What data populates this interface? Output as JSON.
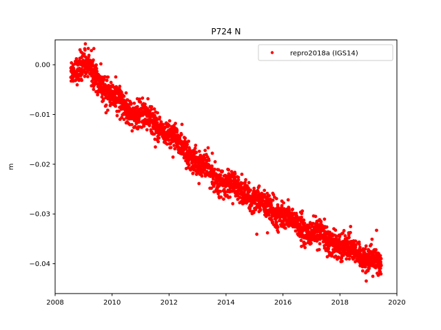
{
  "chart_data": {
    "type": "scatter",
    "title": "P724 N",
    "xlabel": "",
    "ylabel": "m",
    "xlim": [
      2008.0,
      2020.0
    ],
    "ylim": [
      -0.046,
      0.005
    ],
    "xticks": [
      2008,
      2010,
      2012,
      2014,
      2016,
      2018,
      2020
    ],
    "xtick_labels": [
      "2008",
      "2010",
      "2012",
      "2014",
      "2016",
      "2018",
      "2020"
    ],
    "yticks": [
      0.0,
      -0.01,
      -0.02,
      -0.03,
      -0.04
    ],
    "ytick_labels": [
      "0.00",
      "−0.01",
      "−0.02",
      "−0.03",
      "−0.04"
    ],
    "grid": false,
    "legend_position": "top-right",
    "series": [
      {
        "name": "repro2018a (IGS14)",
        "color": "#ff0000",
        "marker": "circle",
        "x_range": [
          2008.55,
          2019.45
        ],
        "trend_points": [
          [
            2008.55,
            -0.001
          ],
          [
            2009.0,
            0.0
          ],
          [
            2009.5,
            -0.003
          ],
          [
            2010.0,
            -0.006
          ],
          [
            2010.5,
            -0.009
          ],
          [
            2011.0,
            -0.01
          ],
          [
            2011.5,
            -0.012
          ],
          [
            2012.0,
            -0.014
          ],
          [
            2012.5,
            -0.017
          ],
          [
            2013.0,
            -0.0195
          ],
          [
            2013.5,
            -0.022
          ],
          [
            2014.0,
            -0.0235
          ],
          [
            2014.5,
            -0.0255
          ],
          [
            2015.0,
            -0.027
          ],
          [
            2015.5,
            -0.0285
          ],
          [
            2016.0,
            -0.0305
          ],
          [
            2016.5,
            -0.032
          ],
          [
            2017.0,
            -0.034
          ],
          [
            2017.5,
            -0.0345
          ],
          [
            2018.0,
            -0.0365
          ],
          [
            2018.5,
            -0.0375
          ],
          [
            2019.0,
            -0.0395
          ],
          [
            2019.45,
            -0.04
          ]
        ],
        "scatter_spread": 0.0013
      }
    ]
  }
}
